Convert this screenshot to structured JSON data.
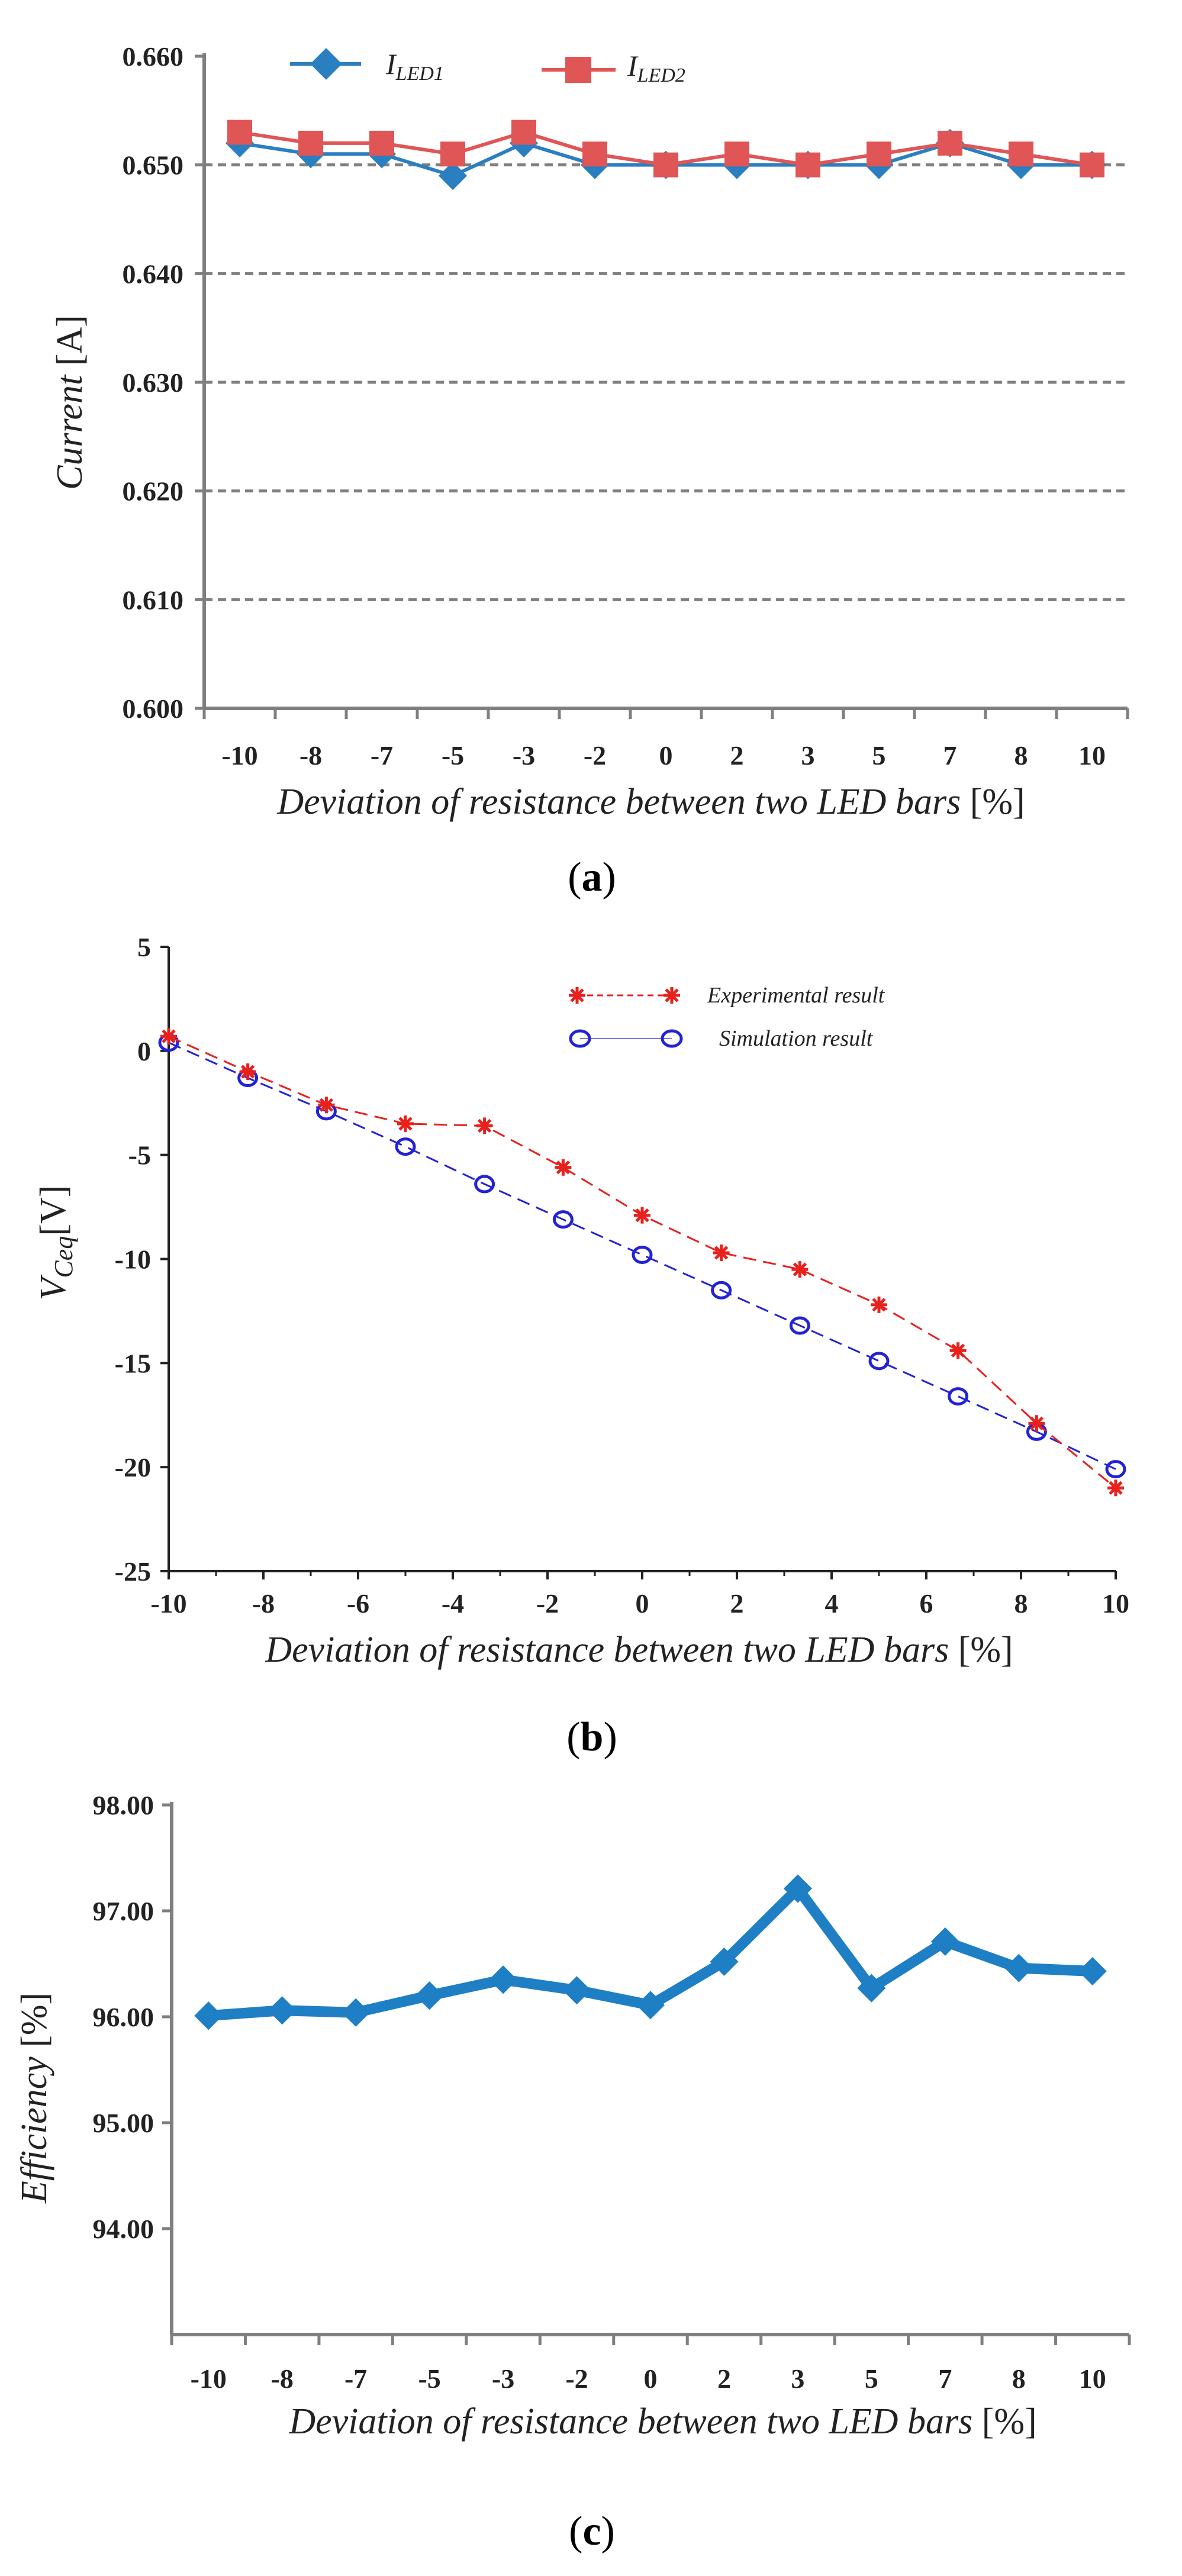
{
  "colors": {
    "led1": "#2a7fc1",
    "led2": "#e05555",
    "experimental": "#e8211d",
    "simulation": "#2222d6",
    "efficiency": "#1f7fc4",
    "axis": "#7f7f7f",
    "grid": "#7f7f7f"
  },
  "chart_data": [
    {
      "type": "line",
      "panel": "a",
      "caption_letter": "a",
      "title": "",
      "xlabel": "Deviation of resistance between two LED bars",
      "xunit": "[%]",
      "ylabel": "Current",
      "yunit": "[A]",
      "categories": [
        "-10",
        "-8",
        "-7",
        "-5",
        "-3",
        "-2",
        "0",
        "2",
        "3",
        "5",
        "7",
        "8",
        "10"
      ],
      "ylim": [
        0.6,
        0.66
      ],
      "yticks": [
        0.6,
        0.61,
        0.62,
        0.63,
        0.64,
        0.65,
        0.66
      ],
      "ytick_labels": [
        "0.600",
        "0.610",
        "0.620",
        "0.630",
        "0.640",
        "0.650",
        "0.660"
      ],
      "grid": "dashed horizontal",
      "legend_position": "top",
      "series": [
        {
          "name": "I",
          "subscript": "LED1",
          "marker": "diamond",
          "values": [
            0.652,
            0.651,
            0.651,
            0.649,
            0.652,
            0.65,
            0.65,
            0.65,
            0.65,
            0.65,
            0.652,
            0.65,
            0.65
          ]
        },
        {
          "name": "I",
          "subscript": "LED2",
          "marker": "square",
          "values": [
            0.653,
            0.652,
            0.652,
            0.651,
            0.653,
            0.651,
            0.65,
            0.651,
            0.65,
            0.651,
            0.652,
            0.651,
            0.65
          ]
        }
      ]
    },
    {
      "type": "line",
      "panel": "b",
      "caption_letter": "b",
      "title": "",
      "xlabel": "Deviation of resistance between two LED bars",
      "xunit": "[%]",
      "ylabel": "V",
      "ylabel_sub": "Ceq",
      "yunit": "[V]",
      "xlim": [
        -10,
        10
      ],
      "ylim": [
        -25,
        5
      ],
      "xticks": [
        -10,
        -8,
        -6,
        -4,
        -2,
        0,
        2,
        4,
        6,
        8,
        10
      ],
      "yticks": [
        -25,
        -20,
        -15,
        -10,
        -5,
        0,
        5
      ],
      "grid": "off",
      "legend_position": "top-right",
      "series": [
        {
          "name": "Experimental result",
          "marker": "asterisk",
          "line": "dashed",
          "x": [
            -10,
            -8.33,
            -6.67,
            -5,
            -3.33,
            -1.67,
            0,
            1.67,
            3.33,
            5,
            6.67,
            8.33,
            10
          ],
          "y": [
            0.7,
            -1.0,
            -2.6,
            -3.5,
            -3.6,
            -5.6,
            -7.9,
            -9.7,
            -10.5,
            -12.2,
            -14.4,
            -17.9,
            -21.0
          ]
        },
        {
          "name": "Simulation result",
          "marker": "circle",
          "line": "dashed",
          "x": [
            -10,
            -8.33,
            -6.67,
            -5,
            -3.33,
            -1.67,
            0,
            1.67,
            3.33,
            5,
            6.67,
            8.33,
            10
          ],
          "y": [
            0.4,
            -1.3,
            -2.9,
            -4.6,
            -6.4,
            -8.1,
            -9.8,
            -11.5,
            -13.2,
            -14.9,
            -16.6,
            -18.3,
            -20.1
          ]
        }
      ]
    },
    {
      "type": "line",
      "panel": "c",
      "caption_letter": "c",
      "title": "",
      "xlabel": "Deviation of resistance between two LED bars",
      "xunit": "[%]",
      "ylabel": "Efficiency",
      "yunit": "[%]",
      "categories": [
        "-10",
        "-8",
        "-7",
        "-5",
        "-3",
        "-2",
        "0",
        "2",
        "3",
        "5",
        "7",
        "8",
        "10"
      ],
      "ylim": [
        93,
        98
      ],
      "yticks": [
        94,
        95,
        96,
        97,
        98
      ],
      "ytick_labels": [
        "94.00",
        "95.00",
        "96.00",
        "97.00",
        "98.00"
      ],
      "grid": "off",
      "series": [
        {
          "name": "Efficiency",
          "marker": "diamond",
          "values": [
            96.01,
            96.06,
            96.04,
            96.2,
            96.35,
            96.25,
            96.11,
            96.52,
            97.21,
            96.27,
            96.71,
            96.46,
            96.43
          ]
        }
      ]
    }
  ]
}
